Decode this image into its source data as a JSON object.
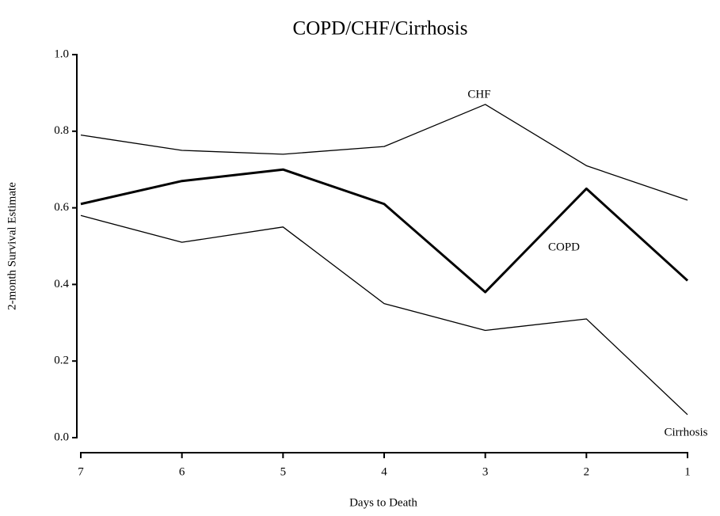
{
  "chart_data": {
    "type": "line",
    "title": "COPD/CHF/Cirrhosis",
    "x_label": "Days to Death",
    "y_label": "2-month Survival Estimate",
    "categories": [
      "7",
      "6",
      "5",
      "4",
      "3",
      "2",
      "1"
    ],
    "series": [
      {
        "name": "CHF",
        "color": "#000000",
        "line_width": 1.3,
        "values": [
          0.79,
          0.75,
          0.74,
          0.76,
          0.87,
          0.71,
          0.62
        ]
      },
      {
        "name": "COPD",
        "color": "#000000",
        "line_width": 3,
        "values": [
          0.61,
          0.67,
          0.7,
          0.61,
          0.38,
          0.65,
          0.41
        ]
      },
      {
        "name": "Cirrhosis",
        "color": "#000000",
        "line_width": 1.3,
        "values": [
          0.58,
          0.51,
          0.55,
          0.35,
          0.28,
          0.31,
          0.06
        ]
      }
    ],
    "ylim": [
      0,
      1
    ],
    "yticks": [
      {
        "value": 0,
        "label": "0.0"
      },
      {
        "value": 0.2,
        "label": "0.2"
      },
      {
        "value": 0.4,
        "label": "0.4"
      },
      {
        "value": 0.6,
        "label": "0.6"
      },
      {
        "value": 0.8,
        "label": "0.8"
      },
      {
        "value": 1,
        "label": "1.0"
      }
    ],
    "grid": false
  }
}
